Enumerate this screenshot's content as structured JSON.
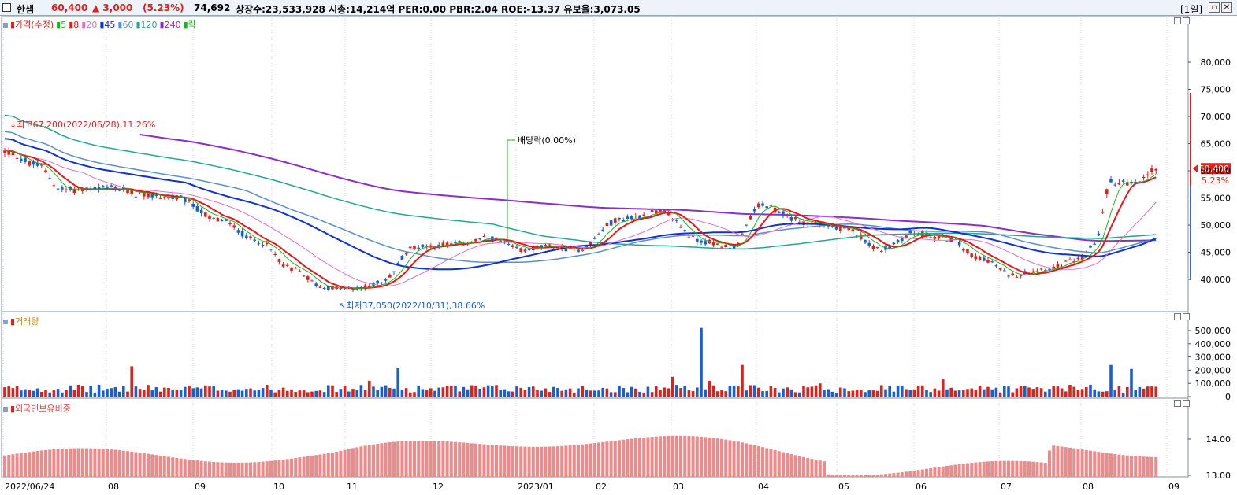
{
  "header": {
    "stock_name": "한샘",
    "price": "60,400",
    "change": "▲ 3,000",
    "change_pct": "(5.23%)",
    "volume": "74,692",
    "stats": "상장수:23,533,928 시총:14,214억 PER:0.00 PBR:2.04 ROE:-13.37 유보율:3,073.05",
    "period": "[1일]",
    "restore_icon": "restore-icon",
    "close_icon": "close-icon"
  },
  "colors": {
    "up": "#e0201a",
    "down": "#1a5fd0",
    "ma5": "#19b419",
    "ma8": "#e8161a",
    "ma20": "#e070c8",
    "ma45": "#1030d0",
    "ma60": "#5a8fcc",
    "ma120": "#22a890",
    "ma240": "#8a2ed0"
  },
  "price_panel": {
    "legend": [
      {
        "label": "가격(수정)",
        "color": "#e0201a"
      },
      {
        "label": "5",
        "color": "#19b419"
      },
      {
        "label": "8",
        "color": "#e8161a"
      },
      {
        "label": "20",
        "color": "#e070c8"
      },
      {
        "label": "45",
        "color": "#1030d0"
      },
      {
        "label": "60",
        "color": "#5a8fcc"
      },
      {
        "label": "120",
        "color": "#22a890"
      },
      {
        "label": "240",
        "color": "#8a2ed0"
      },
      {
        "label": "락",
        "color": "#19b419"
      }
    ],
    "y_ticks": [
      "80,000",
      "75,000",
      "70,000",
      "65,000",
      "60,000",
      "55,000",
      "50,000",
      "45,000",
      "40,000"
    ],
    "y_values": [
      80000,
      75000,
      70000,
      65000,
      60000,
      55000,
      50000,
      45000,
      40000
    ],
    "current_price": "60,400",
    "current_pct": "5.23%",
    "high_annotation": "최고67,200(2022/06/28),11.26%",
    "low_annotation": "최저37,050(2022/10/31),38.66%",
    "dividend_annotation": "배당락(0.00%)"
  },
  "volume_panel": {
    "legend": "거래량",
    "y_ticks": [
      "500,000",
      "400,000",
      "300,000",
      "200,000",
      "100,000",
      "0"
    ],
    "y_values": [
      500000,
      400000,
      300000,
      200000,
      100000,
      0
    ]
  },
  "foreign_panel": {
    "legend": "외국인보유비중",
    "y_ticks": [
      "14.00",
      "13.00"
    ],
    "y_values": [
      14.0,
      13.0
    ]
  },
  "x_axis": [
    "2022/06/24",
    "08",
    "09",
    "10",
    "11",
    "12",
    "2023/01",
    "02",
    "03",
    "04",
    "05",
    "06",
    "07",
    "08",
    "09"
  ],
  "chart_data": {
    "type": "candlestick",
    "price": [
      {
        "date": "2022/06/28",
        "high": 67200
      },
      {
        "date": "2022/10/31",
        "low": 37050
      },
      {
        "date": "2023/09 (latest)",
        "close": 60400,
        "change_pct": 5.23
      }
    ],
    "ylim_price": [
      38000,
      82000
    ],
    "ylim_volume": [
      0,
      550000
    ],
    "ylim_foreign": [
      12.9,
      14.6
    ],
    "moving_averages": [
      "5",
      "8",
      "20",
      "45",
      "60",
      "120",
      "240"
    ]
  }
}
